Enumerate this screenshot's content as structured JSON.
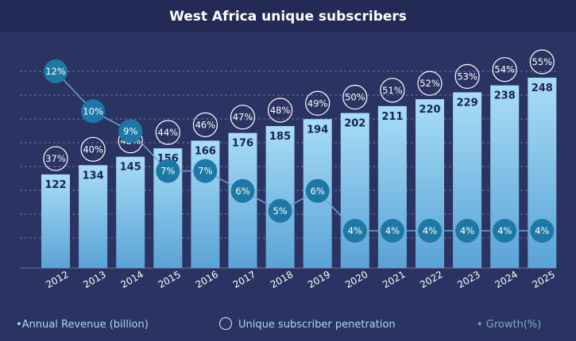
{
  "chart_data": {
    "type": "bar",
    "title": "West Africa unique subscribers",
    "categories": [
      "2012",
      "2013",
      "2014",
      "2015",
      "2016",
      "2017",
      "2018",
      "2019",
      "2020",
      "2021",
      "2022",
      "2023",
      "2024",
      "2025"
    ],
    "series": [
      {
        "name": "Annual Revenue (billion)",
        "type": "bar",
        "values": [
          122,
          134,
          145,
          156,
          166,
          176,
          185,
          194,
          202,
          211,
          220,
          229,
          238,
          248
        ]
      },
      {
        "name": "Unique subscriber penetration",
        "type": "label-circles",
        "values": [
          "37%",
          "40%",
          "42%",
          "44%",
          "46%",
          "47%",
          "48%",
          "49%",
          "50%",
          "51%",
          "52%",
          "53%",
          "54%",
          "55%"
        ]
      },
      {
        "name": "Growth(%)",
        "type": "line",
        "values": [
          12,
          10,
          9,
          7,
          7,
          6,
          5,
          6,
          4,
          4,
          4,
          4,
          4,
          4
        ]
      }
    ],
    "legend": {
      "placement": "bottom",
      "items": [
        "•Annual Revenue (billion)",
        "Unique subscriber penetration",
        "• Growth(%)"
      ]
    },
    "grid": true,
    "colors": {
      "background": "#2b3362",
      "title_bar": "#232a56",
      "bar_top": "#a8ddf7",
      "bar_bottom": "#5aa3d6",
      "growth": "#1e78a6",
      "growth_line": "#6fa5d0",
      "text": "#ffffff",
      "grid": "#6a73a0",
      "legend_text": "#a8d8f5",
      "legend_growth": "#7fa8c8"
    }
  }
}
